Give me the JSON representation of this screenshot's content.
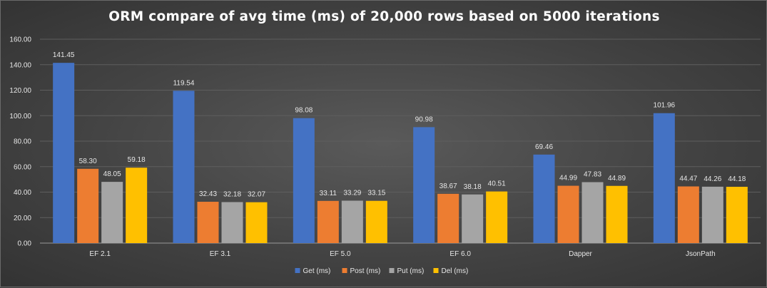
{
  "chart_data": {
    "type": "bar",
    "title": "ORM compare of avg time (ms) of 20,000 rows based on 5000 iterations",
    "xlabel": "",
    "ylabel": "",
    "ylim": [
      0,
      160
    ],
    "yticks": [
      "0.00",
      "20.00",
      "40.00",
      "60.00",
      "80.00",
      "100.00",
      "120.00",
      "140.00",
      "160.00"
    ],
    "grid": true,
    "legend_position": "bottom",
    "categories": [
      "EF 2.1",
      "EF 3.1",
      "EF 5.0",
      "EF 6.0",
      "Dapper",
      "JsonPath"
    ],
    "series": [
      {
        "name": "Get (ms)",
        "color": "#4472c4",
        "values": [
          141.45,
          119.54,
          98.08,
          90.98,
          69.46,
          101.96
        ],
        "labels": [
          "141.45",
          "119.54",
          "98.08",
          "90.98",
          "69.46",
          "101.96"
        ]
      },
      {
        "name": "Post (ms)",
        "color": "#ed7d31",
        "values": [
          58.3,
          32.43,
          33.11,
          38.67,
          44.99,
          44.47
        ],
        "labels": [
          "58.30",
          "32.43",
          "33.11",
          "38.67",
          "44.99",
          "44.47"
        ]
      },
      {
        "name": "Put (ms)",
        "color": "#a5a5a5",
        "values": [
          48.05,
          32.18,
          33.29,
          38.18,
          47.83,
          44.26
        ],
        "labels": [
          "48.05",
          "32.18",
          "33.29",
          "38.18",
          "47.83",
          "44.26"
        ]
      },
      {
        "name": "Del (ms)",
        "color": "#ffc000",
        "values": [
          59.18,
          32.07,
          33.15,
          40.51,
          44.89,
          44.18
        ],
        "labels": [
          "59.18",
          "32.07",
          "33.15",
          "40.51",
          "44.89",
          "44.18"
        ]
      }
    ]
  }
}
